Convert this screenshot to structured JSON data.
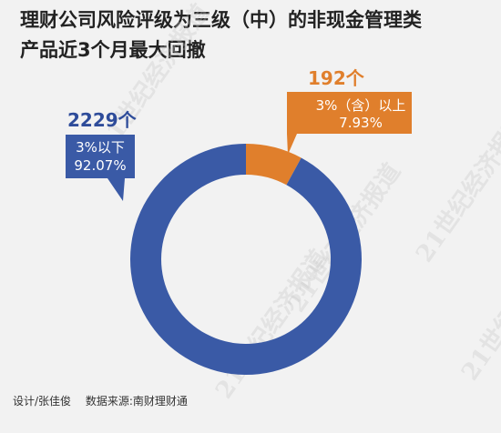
{
  "title_lines": [
    "理财公司风险评级为三级（中）的非现金管理类",
    "产品近3个月最大回撤"
  ],
  "watermark": "21世纪经济报道",
  "footer": {
    "designer": "设计/张佳俊",
    "source": "数据来源:南财理财通"
  },
  "colors": {
    "blue": "#3a5aa6",
    "orange": "#e07f2c",
    "blue_text": "#2e4c9a",
    "orange_text": "#e07f2c"
  },
  "chart_data": {
    "type": "pie",
    "donut": true,
    "title": "理财公司风险评级为三级（中）的非现金管理类产品近3个月最大回撤",
    "series": [
      {
        "name": "3%（含）以上",
        "count_label": "192个",
        "count": 192,
        "percent_label": "7.93%",
        "percent": 7.93,
        "color": "#e07f2c"
      },
      {
        "name": "3%以下",
        "count_label": "2229个",
        "count": 2229,
        "percent_label": "92.07%",
        "percent": 92.07,
        "color": "#3a5aa6"
      }
    ]
  }
}
